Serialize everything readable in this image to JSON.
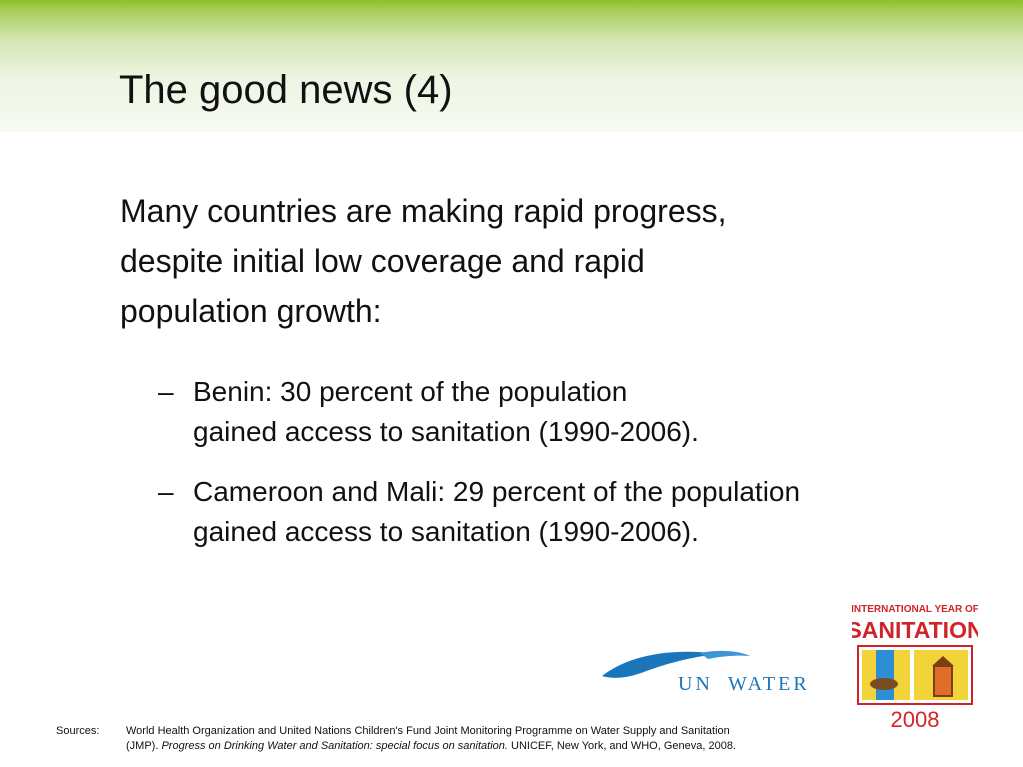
{
  "slide": {
    "title": "The good news (4)",
    "intro_lines": [
      "Many countries are making rapid progress,",
      "despite initial low coverage and rapid",
      "population growth:"
    ],
    "bullets": [
      {
        "dash": "–",
        "lines": [
          "Benin: 30 percent of the population",
          "gained access to sanitation (1990-2006)."
        ]
      },
      {
        "dash": "–",
        "lines": [
          "Cameroon and Mali: 29 percent of the population",
          "gained access to sanitation (1990-2006)."
        ]
      }
    ]
  },
  "sources": {
    "label": "Sources:",
    "line1": "World Health Organization and United Nations Children's Fund Joint Monitoring Programme on Water Supply and Sanitation",
    "line2_prefix": "(JMP). ",
    "line2_italic": "Progress on Drinking Water and Sanitation: special focus on sanitation.",
    "line2_suffix": " UNICEF, New York, and WHO, Geneva, 2008."
  },
  "logos": {
    "unwater": {
      "text_left": "UN",
      "text_right": "WATER",
      "icon": "wave-swoosh-icon"
    },
    "iys": {
      "line1": "INTERNATIONAL YEAR OF",
      "line2": "SANITATION",
      "year": "2008"
    }
  },
  "colors": {
    "header_green": "#8cbf2a",
    "unwater_blue": "#1b75bb",
    "iys_red": "#d1242a"
  }
}
